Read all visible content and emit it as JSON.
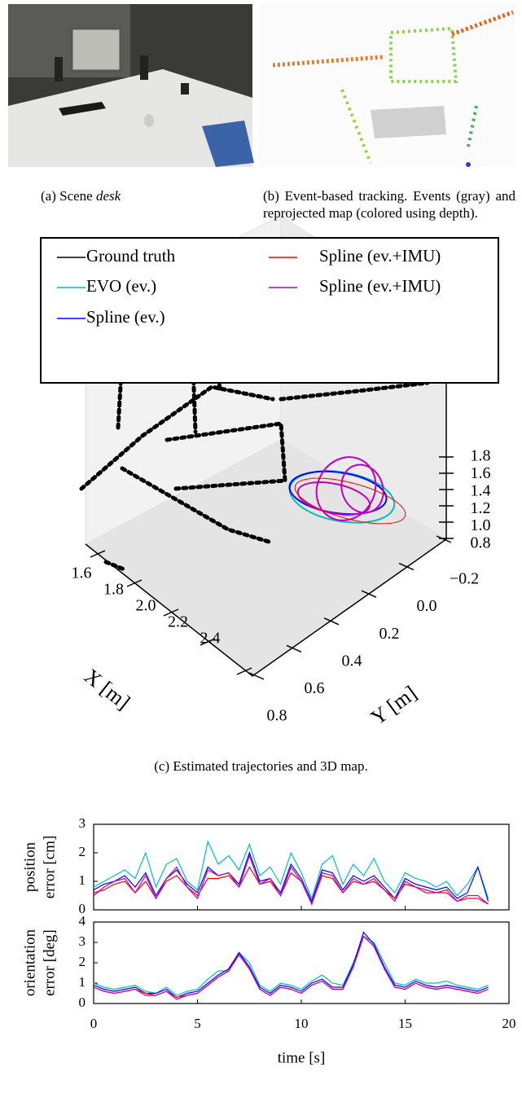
{
  "figure": {
    "caption_a": {
      "label": "(a) Scene",
      "emphasis": "desk"
    },
    "caption_b": "(b) Event-based tracking. Events (gray) and reprojected map (colored using depth).",
    "caption_c": "(c) Estimated trajectories and 3D map."
  },
  "chart_data": [
    {
      "type": "scatter3d",
      "series": [
        {
          "name": "Ground truth",
          "color": "#000000"
        },
        {
          "name": "EVO (ev.)",
          "color": "#00bfbf"
        },
        {
          "name": "Spline (ev.)",
          "color": "#0000ff"
        },
        {
          "name": "Spline (ev.+IMU)",
          "color": "#ff0000"
        },
        {
          "name": "Spline (ev.+IMU)",
          "color": "#bf00bf"
        }
      ],
      "xlabel": "X [m]",
      "ylabel": "Y [m]",
      "xlim": [
        1.6,
        2.4
      ],
      "xticks": [
        2.4,
        2.2,
        {
          "value": 2.0,
          "label": "2.0"
        },
        1.8,
        1.6
      ],
      "ylim": [
        -0.2,
        0.8
      ],
      "yticks": [
        {
          "value": -0.2,
          "label": "−0.2"
        },
        {
          "value": 0.0,
          "label": "0.0"
        },
        0.2,
        0.4,
        0.6,
        0.8
      ],
      "zlim": [
        0.8,
        1.8
      ],
      "zticks": [
        1.8,
        1.6,
        1.4,
        1.2,
        {
          "value": 1.0,
          "label": "1.0"
        },
        0.8
      ]
    },
    {
      "type": "line",
      "ylabel": [
        "position",
        "error [cm]"
      ],
      "x": [
        0,
        0.5,
        1,
        1.5,
        2,
        2.5,
        3,
        3.5,
        4,
        4.5,
        5,
        5.5,
        6,
        6.5,
        7,
        7.5,
        8,
        8.5,
        9,
        9.5,
        10,
        10.5,
        11,
        11.5,
        12,
        12.5,
        13,
        13.5,
        14,
        14.5,
        15,
        15.5,
        16,
        16.5,
        17,
        17.5,
        18,
        18.5,
        19
      ],
      "xlim": [
        0,
        20
      ],
      "xticks": [
        0,
        5,
        10,
        15,
        20
      ],
      "ylim": [
        0,
        3
      ],
      "yticks": [
        0,
        1,
        2,
        3
      ],
      "series": [
        {
          "color": "#00bfbf",
          "values": [
            0.8,
            1.0,
            1.2,
            1.4,
            1.1,
            2.0,
            0.8,
            1.6,
            1.8,
            1.0,
            0.7,
            2.4,
            1.6,
            1.9,
            1.4,
            2.3,
            1.2,
            1.5,
            0.9,
            2.0,
            1.3,
            0.4,
            1.6,
            1.9,
            0.9,
            1.6,
            1.2,
            1.8,
            1.0,
            0.6,
            1.3,
            1.1,
            1.0,
            0.8,
            1.0,
            0.5,
            0.9,
            1.5,
            0.4
          ]
        },
        {
          "color": "#0000ff",
          "values": [
            0.7,
            0.9,
            1.0,
            1.2,
            0.8,
            1.3,
            0.5,
            1.1,
            1.4,
            0.9,
            0.6,
            1.5,
            1.2,
            1.3,
            0.9,
            2.0,
            1.0,
            1.1,
            0.6,
            1.6,
            1.1,
            0.3,
            1.4,
            1.3,
            0.7,
            1.2,
            1.0,
            1.2,
            0.8,
            0.4,
            1.1,
            0.9,
            0.8,
            0.7,
            0.8,
            0.4,
            0.6,
            1.5,
            0.3
          ]
        },
        {
          "color": "#ff0000",
          "values": [
            0.6,
            0.7,
            0.9,
            1.0,
            0.6,
            1.0,
            0.4,
            1.0,
            1.2,
            0.8,
            0.5,
            1.1,
            1.1,
            1.2,
            0.8,
            1.5,
            0.9,
            1.0,
            0.5,
            1.3,
            1.0,
            0.2,
            1.2,
            1.1,
            0.6,
            1.0,
            0.9,
            1.0,
            0.7,
            0.4,
            0.9,
            0.8,
            0.6,
            0.6,
            0.7,
            0.3,
            0.4,
            0.4,
            0.2
          ]
        },
        {
          "color": "#bf00bf",
          "values": [
            0.5,
            0.8,
            1.0,
            1.1,
            0.6,
            1.2,
            0.4,
            1.1,
            1.5,
            0.8,
            0.4,
            1.4,
            1.2,
            1.3,
            0.8,
            1.9,
            0.9,
            1.1,
            0.5,
            1.5,
            1.0,
            0.2,
            1.3,
            1.2,
            0.6,
            1.1,
            0.9,
            1.1,
            0.7,
            0.3,
            1.0,
            0.8,
            0.7,
            0.6,
            0.6,
            0.3,
            0.5,
            0.5,
            0.2
          ]
        }
      ]
    },
    {
      "type": "line",
      "ylabel": [
        "orientation",
        "error [deg]"
      ],
      "xlabel": "time [s]",
      "x": [
        0,
        0.5,
        1,
        1.5,
        2,
        2.5,
        3,
        3.5,
        4,
        4.5,
        5,
        5.5,
        6,
        6.5,
        7,
        7.5,
        8,
        8.5,
        9,
        9.5,
        10,
        10.5,
        11,
        11.5,
        12,
        12.5,
        13,
        13.5,
        14,
        14.5,
        15,
        15.5,
        16,
        16.5,
        17,
        17.5,
        18,
        18.5,
        19
      ],
      "xlim": [
        0,
        20
      ],
      "xticks": [
        0,
        5,
        10,
        15,
        20
      ],
      "ylim": [
        0,
        4
      ],
      "yticks": [
        0,
        1,
        2,
        3,
        4
      ],
      "series": [
        {
          "color": "#00bfbf",
          "values": [
            1.0,
            0.8,
            0.7,
            0.8,
            0.9,
            0.6,
            0.5,
            0.8,
            0.4,
            0.6,
            0.7,
            1.2,
            1.6,
            1.6,
            2.5,
            2.0,
            0.9,
            0.6,
            1.0,
            0.9,
            0.7,
            1.1,
            1.4,
            1.0,
            0.9,
            2.0,
            3.3,
            3.0,
            2.0,
            1.0,
            0.9,
            1.2,
            1.0,
            1.0,
            1.1,
            0.9,
            0.8,
            0.7,
            0.9
          ]
        },
        {
          "color": "#0000ff",
          "values": [
            0.9,
            0.7,
            0.6,
            0.7,
            0.8,
            0.5,
            0.5,
            0.7,
            0.3,
            0.5,
            0.6,
            1.0,
            1.4,
            1.7,
            2.5,
            1.8,
            0.8,
            0.5,
            0.9,
            0.8,
            0.6,
            1.0,
            1.2,
            0.8,
            0.8,
            1.9,
            3.5,
            2.9,
            1.8,
            0.9,
            0.8,
            1.1,
            0.9,
            0.8,
            0.9,
            0.8,
            0.7,
            0.6,
            0.8
          ]
        },
        {
          "color": "#ff0000",
          "values": [
            0.8,
            0.6,
            0.5,
            0.6,
            0.7,
            0.5,
            0.4,
            0.6,
            0.3,
            0.4,
            0.5,
            0.9,
            1.3,
            1.6,
            2.4,
            1.7,
            0.7,
            0.4,
            0.8,
            0.7,
            0.5,
            0.9,
            1.1,
            0.7,
            0.7,
            1.8,
            3.3,
            2.8,
            1.7,
            0.8,
            0.7,
            1.0,
            0.8,
            0.7,
            0.8,
            0.7,
            0.6,
            0.5,
            0.7
          ]
        },
        {
          "color": "#bf00bf",
          "values": [
            0.8,
            0.6,
            0.5,
            0.6,
            0.7,
            0.4,
            0.4,
            0.6,
            0.2,
            0.4,
            0.5,
            0.9,
            1.3,
            1.6,
            2.4,
            1.7,
            0.7,
            0.4,
            0.8,
            0.7,
            0.5,
            0.9,
            1.1,
            0.7,
            0.7,
            1.8,
            3.3,
            2.8,
            1.7,
            0.8,
            0.7,
            1.0,
            0.8,
            0.7,
            0.8,
            0.7,
            0.6,
            0.5,
            0.7
          ]
        }
      ]
    }
  ]
}
